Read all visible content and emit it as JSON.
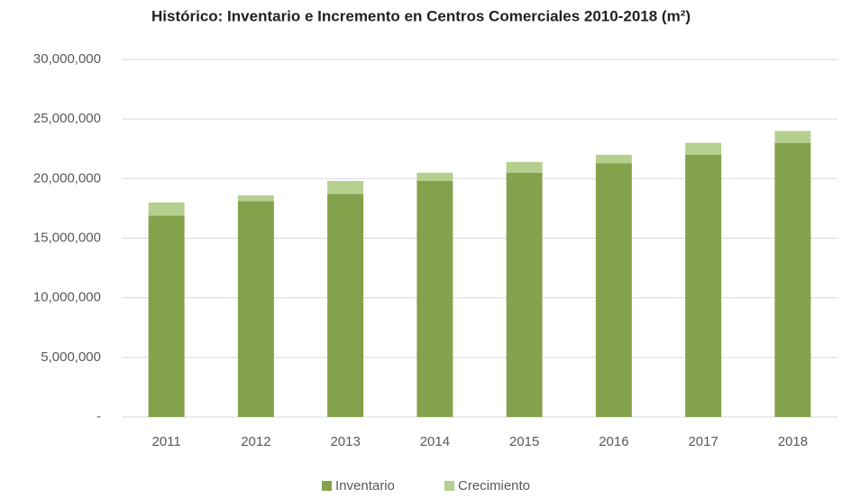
{
  "chart_data": {
    "type": "stacked_bar",
    "title": "Histórico: Inventario e Incremento en Centros Comerciales 2010-2018 (m²)",
    "categories": [
      "2011",
      "2012",
      "2013",
      "2014",
      "2015",
      "2016",
      "2017",
      "2018"
    ],
    "series": [
      {
        "name": "Inventario",
        "color": "#84a24c",
        "values": [
          16900000,
          18100000,
          18700000,
          19800000,
          20500000,
          21300000,
          22000000,
          23000000
        ]
      },
      {
        "name": "Crecimiento",
        "color": "#b5cf8e",
        "values": [
          1100000,
          500000,
          1100000,
          700000,
          900000,
          700000,
          1000000,
          1000000
        ]
      }
    ],
    "ylim": [
      0,
      30000000
    ],
    "yticks": [
      {
        "value": 0,
        "label": "-"
      },
      {
        "value": 5000000,
        "label": "5,000,000"
      },
      {
        "value": 10000000,
        "label": "10,000,000"
      },
      {
        "value": 15000000,
        "label": "15,000,000"
      },
      {
        "value": 20000000,
        "label": "20,000,000"
      },
      {
        "value": 25000000,
        "label": "25,000,000"
      },
      {
        "value": 30000000,
        "label": "30,000,000"
      }
    ],
    "grid": true,
    "legend": "bottom"
  }
}
